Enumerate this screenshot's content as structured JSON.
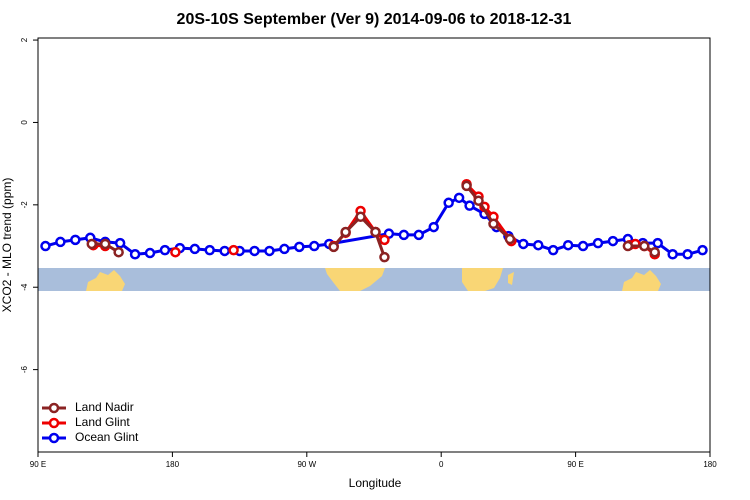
{
  "chart_data": {
    "type": "line",
    "title": "20S-10S September (Ver 9)   2014-09-06 to 2018-12-31",
    "x_label": "Longitude",
    "y_label": "XCO2 - MLO trend (ppm)",
    "xlim": [
      90,
      540
    ],
    "ylim": [
      -8,
      2.05
    ],
    "xticks": [
      {
        "value": 90,
        "label": "90 E"
      },
      180,
      {
        "value": 270,
        "label": "90 W"
      },
      {
        "value": 360,
        "label": "0"
      },
      {
        "value": 450,
        "label": "90 E"
      },
      {
        "value": 540,
        "label": "180"
      }
    ],
    "yticks": [
      2,
      0,
      -2,
      -4,
      -6
    ],
    "legend": "bottom-left",
    "series": [
      {
        "name": "Land Nadir",
        "color": "#8b2323",
        "x": [
          126,
          135,
          144,
          null,
          288,
          296,
          306,
          316,
          322,
          null,
          377,
          385,
          395,
          406,
          null,
          485,
          496,
          503
        ],
        "values": [
          -2.95,
          -2.95,
          -3.15,
          null,
          -3.02,
          -2.66,
          -2.29,
          -2.66,
          -3.27,
          null,
          -1.54,
          -1.9,
          -2.46,
          -2.83,
          null,
          -3.0,
          -3.0,
          -3.15
        ]
      },
      {
        "name": "Land Glint",
        "color": "#ee0000",
        "x": [
          127,
          135,
          null,
          182,
          null,
          221,
          null,
          288,
          296,
          306,
          316,
          322,
          null,
          377,
          385,
          389,
          395,
          407,
          null,
          486,
          490,
          496,
          503
        ],
        "values": [
          -2.98,
          -3.0,
          null,
          -3.15,
          null,
          -3.1,
          null,
          -3.0,
          -2.68,
          -2.15,
          -2.66,
          -2.85,
          null,
          -1.5,
          -1.8,
          -2.05,
          -2.29,
          -2.88,
          null,
          -2.98,
          -2.95,
          -3.0,
          -3.2
        ]
      },
      {
        "name": "Ocean Glint",
        "color": "#0000ee",
        "x": [
          95,
          105,
          115,
          125,
          135,
          145,
          155,
          165,
          175,
          185,
          195,
          205,
          215,
          225,
          235,
          245,
          255,
          265,
          275,
          285,
          325,
          335,
          345,
          355,
          365,
          372,
          379,
          389,
          397,
          405,
          415,
          425,
          435,
          445,
          455,
          465,
          475,
          485,
          495,
          505,
          515,
          525,
          535
        ],
        "values": [
          -3.0,
          -2.9,
          -2.85,
          -2.8,
          -2.9,
          -2.93,
          -3.2,
          -3.17,
          -3.1,
          -3.05,
          -3.07,
          -3.1,
          -3.12,
          -3.12,
          -3.12,
          -3.12,
          -3.07,
          -3.02,
          -3.0,
          -2.95,
          -2.7,
          -2.73,
          -2.73,
          -2.54,
          -1.95,
          -1.83,
          -2.02,
          -2.22,
          -2.54,
          -2.76,
          -2.95,
          -2.98,
          -3.1,
          -2.98,
          -3.0,
          -2.93,
          -2.88,
          -2.83,
          -2.93,
          -2.93,
          -3.2,
          -3.2,
          -3.1
        ]
      }
    ]
  }
}
